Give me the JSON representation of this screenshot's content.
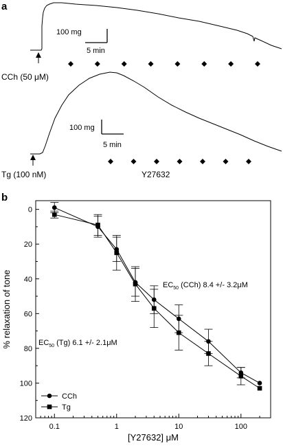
{
  "panels": {
    "a": "a",
    "b": "b"
  },
  "chart_data": [
    {
      "type": "line",
      "panel": "a",
      "traces": [
        {
          "stimulus_label": "CCh (50 μM)",
          "scale_force": "100 mg",
          "scale_time": "5 min",
          "marker_count": 8
        },
        {
          "stimulus_label": "Tg (100 nM)",
          "scale_force": "100 mg",
          "scale_time": "5 min",
          "drug_label": "Y27632",
          "marker_count": 7
        }
      ]
    },
    {
      "type": "line",
      "panel": "b",
      "xlabel": "[Y27632] μM",
      "ylabel": "% relaxation of tone",
      "xscale": "log",
      "xlim": [
        0.05,
        300
      ],
      "ylim": [
        -5,
        120
      ],
      "yaxis_inverted": true,
      "xticks": [
        "0.1",
        "1",
        "10",
        "100"
      ],
      "yticks": [
        "0",
        "20",
        "40",
        "60",
        "80",
        "100",
        "120"
      ],
      "legend_position": "bottom-left",
      "annotations": [
        {
          "prefix": "EC",
          "sub": "50",
          "text": " (CCh)  8.4 +/- 3.2μM"
        },
        {
          "prefix": "EC",
          "sub": "50",
          "text": " (Tg)  6.1 +/- 2.1μM"
        }
      ],
      "series": [
        {
          "name": "CCh",
          "marker": "circle",
          "x": [
            0.1,
            0.5,
            1,
            2,
            4,
            10,
            30,
            100,
            200
          ],
          "y": [
            -1,
            10,
            23,
            42,
            52,
            63,
            76,
            94,
            100
          ],
          "err": [
            3,
            6,
            7,
            8,
            8,
            8,
            7,
            3,
            0
          ]
        },
        {
          "name": "Tg",
          "marker": "square",
          "x": [
            0.1,
            0.5,
            1,
            2,
            4,
            10,
            30,
            100,
            200
          ],
          "y": [
            3,
            9,
            25,
            43,
            57,
            71,
            83,
            96,
            103
          ],
          "err": [
            2,
            6,
            10,
            10,
            11,
            10,
            7,
            5,
            0
          ]
        }
      ]
    }
  ]
}
